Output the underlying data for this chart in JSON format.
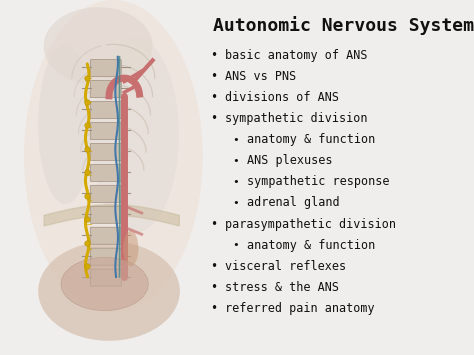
{
  "title": "Autonomic Nervous System",
  "title_fontsize": 13,
  "title_fontweight": "bold",
  "title_fontfamily": "monospace",
  "background_color": "#f0eeec",
  "bullet_items": [
    {
      "text": "basic anatomy of ANS",
      "indent": 0
    },
    {
      "text": "ANS vs PNS",
      "indent": 0
    },
    {
      "text": "divisions of ANS",
      "indent": 0
    },
    {
      "text": "sympathetic division",
      "indent": 0
    },
    {
      "text": "anatomy & function",
      "indent": 1
    },
    {
      "text": "ANS plexuses",
      "indent": 1
    },
    {
      "text": "sympathetic response",
      "indent": 1
    },
    {
      "text": "adrenal gland",
      "indent": 1
    },
    {
      "text": "parasympathetic division",
      "indent": 0
    },
    {
      "text": "anatomy & function",
      "indent": 1
    },
    {
      "text": "visceral reflexes",
      "indent": 0
    },
    {
      "text": "stress & the ANS",
      "indent": 0
    },
    {
      "text": "referred pain anatomy",
      "indent": 0
    }
  ],
  "bullet_fontsize": 8.5,
  "bullet_fontfamily": "monospace",
  "text_color": "#111111",
  "body_color": "#e8d5c0",
  "body_edge_color": "#d0bfaa",
  "rib_color": "#c8bfb0",
  "spine_color": "#b8a898",
  "vertebra_face": "#cec0b0",
  "vertebra_edge": "#a09080",
  "aorta_color": "#c87070",
  "nerve_yellow": "#d4aa00",
  "nerve_blue": "#4477aa",
  "nerve_teal": "#448888",
  "pelvis_color": "#d8bea8",
  "lung_color": "#ddd5cc"
}
